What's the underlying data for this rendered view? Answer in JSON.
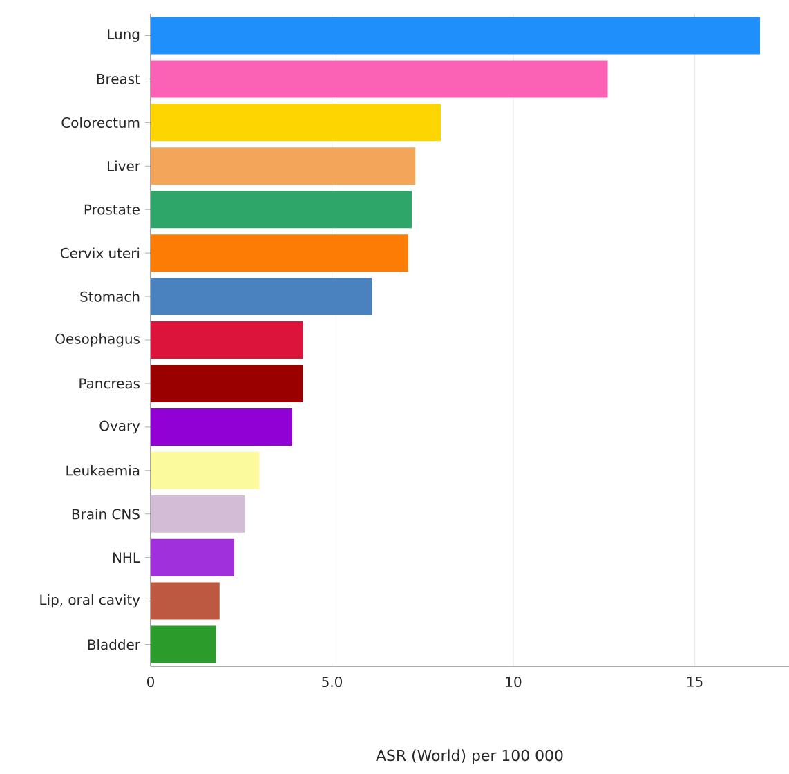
{
  "chart_data": {
    "type": "bar",
    "orientation": "horizontal",
    "xlabel": "ASR (World) per 100 000",
    "categories": [
      "Lung",
      "Breast",
      "Colorectum",
      "Liver",
      "Prostate",
      "Cervix uteri",
      "Stomach",
      "Oesophagus",
      "Pancreas",
      "Ovary",
      "Leukaemia",
      "Brain CNS",
      "NHL",
      "Lip, oral cavity",
      "Bladder"
    ],
    "values": [
      16.8,
      12.6,
      8.0,
      7.3,
      7.2,
      7.1,
      6.1,
      4.2,
      4.2,
      3.9,
      3.0,
      2.6,
      2.3,
      1.9,
      1.8
    ],
    "colors": [
      "#1f8ffb",
      "#fb62b6",
      "#fdd602",
      "#f3a55a",
      "#2ea66a",
      "#fd7c05",
      "#4982bf",
      "#dc143c",
      "#9b0000",
      "#9100d4",
      "#fbfb9d",
      "#d2bcd6",
      "#a030dc",
      "#bc5940",
      "#2b9b2b"
    ],
    "xlim": [
      0,
      17.6
    ],
    "xticks": [
      0,
      {
        "value": 5,
        "label": "5.0"
      },
      10,
      15
    ],
    "grid": "x"
  }
}
